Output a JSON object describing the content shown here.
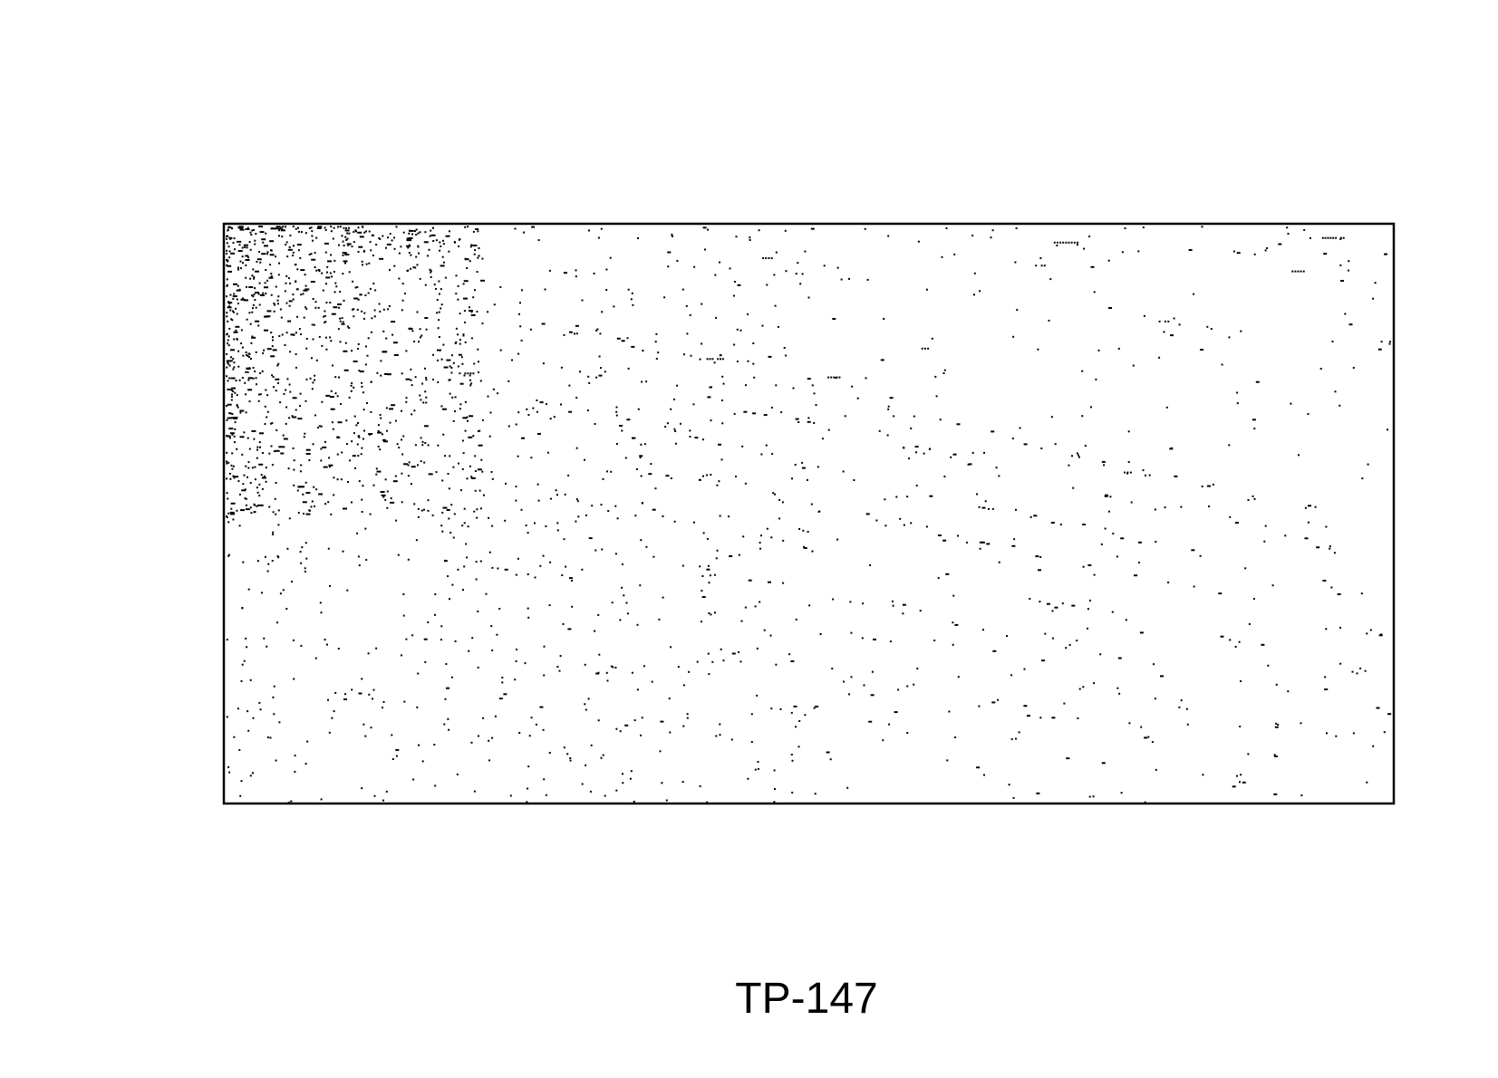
{
  "chart_data": {
    "type": "scatter",
    "subtype": "sparsity-pattern",
    "title": "",
    "caption": "TP-147",
    "xlabel": "",
    "ylabel": "",
    "axes_ticks": false,
    "grid": false,
    "legend": "none",
    "marker_color": "#000000",
    "frame_color": "#000000",
    "background": "#ffffff",
    "xlim": [
      0,
      1
    ],
    "ylim": [
      0,
      1
    ],
    "y_inverted": true,
    "dense_region": {
      "x": [
        0,
        0.22
      ],
      "y": [
        0,
        0.5
      ],
      "count": 900
    },
    "mid_region": {
      "x": [
        0,
        0.5
      ],
      "y": [
        0,
        1
      ],
      "count": 550
    },
    "sparse_region": {
      "x": [
        0,
        1
      ],
      "y": [
        0,
        1
      ],
      "count": 420
    },
    "diagonal_bands": [
      {
        "y0": 0.03,
        "slope": 0.5,
        "count": 45
      },
      {
        "y0": 0.1,
        "slope": 0.48,
        "count": 45
      },
      {
        "y0": 0.18,
        "slope": 0.47,
        "count": 45
      },
      {
        "y0": 0.26,
        "slope": 0.45,
        "count": 40
      },
      {
        "y0": 0.34,
        "slope": 0.44,
        "count": 40
      },
      {
        "y0": 0.42,
        "slope": 0.42,
        "count": 38
      },
      {
        "y0": 0.5,
        "slope": 0.4,
        "count": 34
      },
      {
        "y0": 0.58,
        "slope": 0.38,
        "count": 30
      },
      {
        "y0": 0.66,
        "slope": 0.36,
        "count": 26
      },
      {
        "y0": 0.74,
        "slope": 0.34,
        "count": 22
      }
    ],
    "horizontal_runs": [
      {
        "x": 0.71,
        "y": 0.028,
        "len": 0.022
      },
      {
        "x": 0.94,
        "y": 0.02,
        "len": 0.02
      },
      {
        "x": 0.694,
        "y": 0.068,
        "len": 0.01
      },
      {
        "x": 0.914,
        "y": 0.078,
        "len": 0.012
      },
      {
        "x": 0.8,
        "y": 0.165,
        "len": 0.01
      },
      {
        "x": 0.988,
        "y": 0.2,
        "len": 0.012
      },
      {
        "x": 0.594,
        "y": 0.212,
        "len": 0.01
      },
      {
        "x": 0.41,
        "y": 0.23,
        "len": 0.018
      },
      {
        "x": 0.516,
        "y": 0.262,
        "len": 0.012
      },
      {
        "x": 0.2,
        "y": 0.255,
        "len": 0.014
      },
      {
        "x": 0.77,
        "y": 0.427,
        "len": 0.008
      },
      {
        "x": 0.64,
        "y": 0.393,
        "len": 0.012
      },
      {
        "x": 0.46,
        "y": 0.055,
        "len": 0.01
      }
    ],
    "seed": 147
  }
}
